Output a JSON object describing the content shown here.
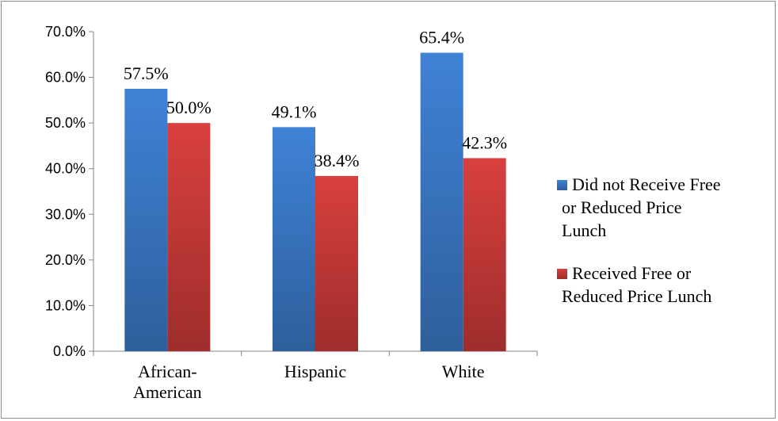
{
  "chart_data": {
    "type": "bar",
    "title": "",
    "xlabel": "",
    "ylabel": "",
    "categories": [
      [
        "African-",
        "American"
      ],
      [
        "Hispanic"
      ],
      [
        "White"
      ]
    ],
    "series": [
      {
        "name": [
          "Did not Receive Free",
          "or Reduced Price",
          "Lunch"
        ],
        "values": [
          57.5,
          49.1,
          65.4
        ],
        "labels": [
          "57.5%",
          "49.1%",
          "65.4%"
        ],
        "color_top": "#3f82d6",
        "color_bottom": "#2e5f9c"
      },
      {
        "name": [
          "Received Free or",
          "Reduced Price Lunch"
        ],
        "values": [
          50.0,
          38.4,
          42.3
        ],
        "labels": [
          "50.0%",
          "38.4%",
          "42.3%"
        ],
        "color_top": "#d8403f",
        "color_bottom": "#9e2d2b"
      }
    ],
    "ylim": [
      0,
      70
    ],
    "yticks": [
      0,
      10,
      20,
      30,
      40,
      50,
      60,
      70
    ],
    "ytick_labels": [
      "0.0%",
      "10.0%",
      "20.0%",
      "30.0%",
      "40.0%",
      "50.0%",
      "60.0%",
      "70.0%"
    ],
    "grid": false,
    "legend": "right"
  }
}
